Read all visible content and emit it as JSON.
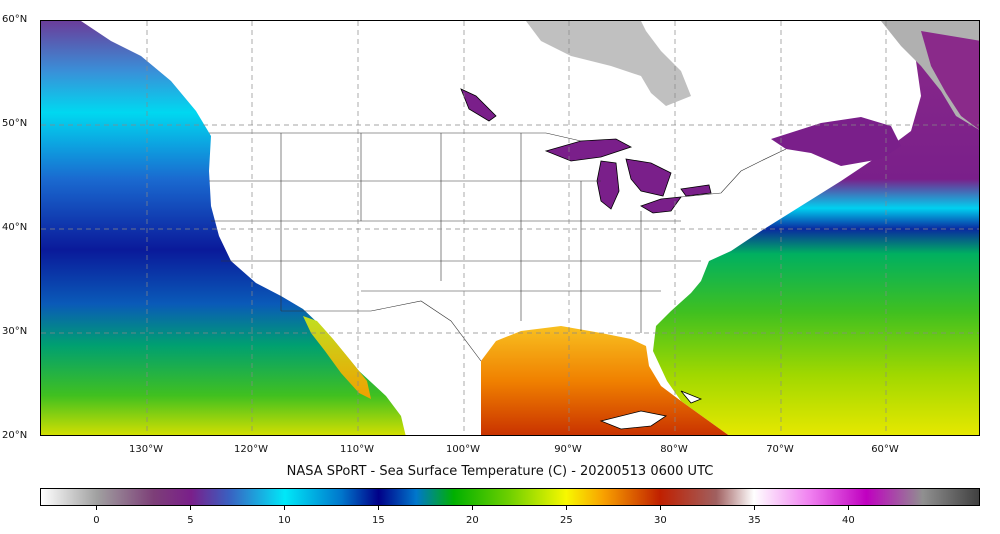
{
  "title": "NASA SPoRT - Sea Surface Temperature (C) - 20200513 0600 UTC",
  "latitude_labels": [
    "60°N",
    "50°N",
    "40°N",
    "30°N",
    "20°N"
  ],
  "longitude_labels": [
    "130°W",
    "120°W",
    "110°W",
    "100°W",
    "90°W",
    "80°W",
    "70°W",
    "60°W"
  ],
  "colorbar": {
    "unit": "C",
    "min": -3,
    "max": 47,
    "tick_labels": [
      "0",
      "5",
      "10",
      "15",
      "20",
      "25",
      "30",
      "35",
      "40"
    ],
    "tick_values": [
      0,
      5,
      10,
      15,
      20,
      25,
      30,
      35,
      40
    ],
    "stops": [
      {
        "value": -3,
        "color": "#ffffff"
      },
      {
        "value": 0,
        "color": "#a0a0a0"
      },
      {
        "value": 3,
        "color": "#7d3f78"
      },
      {
        "value": 5,
        "color": "#7a1f8a"
      },
      {
        "value": 7,
        "color": "#3a5fc0"
      },
      {
        "value": 10,
        "color": "#00e8f8"
      },
      {
        "value": 13,
        "color": "#0077cc"
      },
      {
        "value": 15,
        "color": "#000088"
      },
      {
        "value": 17,
        "color": "#0077cc"
      },
      {
        "value": 19,
        "color": "#00b000"
      },
      {
        "value": 22,
        "color": "#70d000"
      },
      {
        "value": 25,
        "color": "#f8f800"
      },
      {
        "value": 27,
        "color": "#f8a000"
      },
      {
        "value": 30,
        "color": "#c02000"
      },
      {
        "value": 33,
        "color": "#a06060"
      },
      {
        "value": 35,
        "color": "#ffffff"
      },
      {
        "value": 38,
        "color": "#f080f0"
      },
      {
        "value": 41,
        "color": "#c000c0"
      },
      {
        "value": 44,
        "color": "#909090"
      },
      {
        "value": 47,
        "color": "#404040"
      }
    ]
  },
  "map_extent": {
    "lon_min": -140,
    "lon_max": -51,
    "lat_min": 20,
    "lat_max": 60
  },
  "colors": {
    "land": "#ffffff",
    "ice": "#b8b8b8",
    "border": "#000000",
    "grid": "#888888"
  }
}
